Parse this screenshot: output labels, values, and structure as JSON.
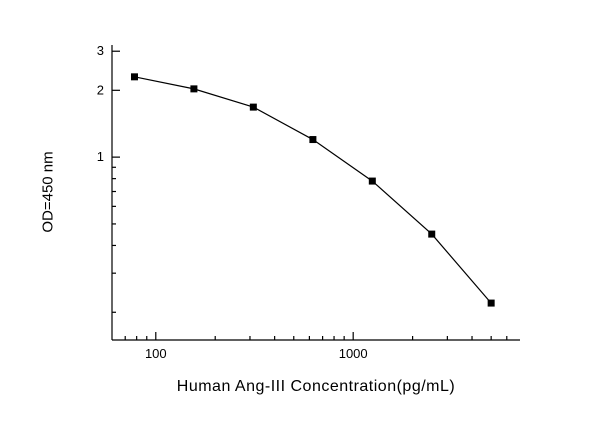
{
  "figure": {
    "background": "#ffffff",
    "axis_color": "#000000",
    "text_color": "#000000"
  },
  "chart_data": {
    "type": "line",
    "title": "",
    "xlabel": "Human Ang-III  Concentration(pg/mL)",
    "ylabel": "OD=450 nm",
    "x_scale": "log",
    "y_scale": "log",
    "xlim": [
      60,
      7000
    ],
    "ylim": [
      0.15,
      3.2
    ],
    "x": [
      78,
      156,
      312,
      625,
      1250,
      2500,
      5000
    ],
    "y": [
      2.3,
      2.03,
      1.68,
      1.2,
      0.78,
      0.45,
      0.22
    ],
    "x_major_ticks": [
      100,
      1000
    ],
    "x_tick_labels": [
      "100",
      "1000"
    ],
    "y_major_ticks": [
      1,
      2,
      3
    ],
    "y_tick_labels": [
      "1",
      "2",
      "3"
    ],
    "marker": "square",
    "marker_color": "#000000",
    "line_color": "#000000",
    "grid": false
  }
}
